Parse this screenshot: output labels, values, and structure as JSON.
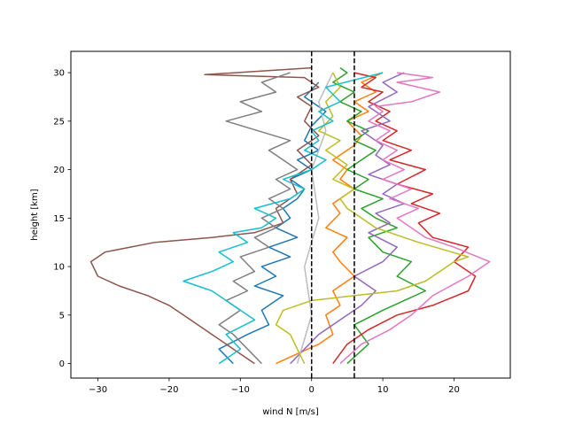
{
  "chart_data": {
    "type": "line",
    "title": "",
    "xlabel": "wind N [m/s]",
    "ylabel": "height [km]",
    "xlim": [
      -33.8,
      27.9
    ],
    "ylim": [
      -1.5,
      32.2
    ],
    "xticks": [
      -30,
      -20,
      -10,
      0,
      10,
      20
    ],
    "xtick_labels": [
      "−30",
      "−20",
      "−10",
      "0",
      "10",
      "20"
    ],
    "yticks": [
      0,
      5,
      10,
      15,
      20,
      25,
      30
    ],
    "ytick_labels": [
      "0",
      "5",
      "10",
      "15",
      "20",
      "25",
      "30"
    ],
    "grid": false,
    "legend": "none",
    "reference_lines": [
      {
        "x": 0,
        "style": "dashed",
        "color": "#000000"
      },
      {
        "x": 6,
        "style": "dashed",
        "color": "#000000"
      }
    ],
    "series": [
      {
        "color": "#1f77b4",
        "x": [
          -11,
          -13,
          -9,
          -6,
          -7,
          -4,
          -8,
          -5,
          -7,
          -3,
          -6,
          -2,
          -5,
          -3,
          -4,
          -2,
          -1,
          -3,
          0,
          -2,
          1,
          -1,
          0,
          2,
          -1,
          1
        ],
        "y": [
          0,
          1.5,
          3,
          4,
          5.5,
          7,
          8,
          9,
          10,
          11,
          12,
          13,
          14,
          15,
          16,
          17,
          18,
          19,
          20,
          21,
          22,
          23,
          24.5,
          26,
          27.5,
          29
        ]
      },
      {
        "color": "#ff7f0e",
        "x": [
          -5,
          -2,
          1,
          3,
          2,
          4,
          3,
          6,
          4,
          3,
          5,
          2,
          4,
          3,
          6,
          4,
          5,
          3,
          6,
          7,
          5,
          8,
          6,
          9,
          7,
          10
        ],
        "y": [
          0,
          1,
          2,
          3,
          5,
          6,
          7.5,
          9,
          10.5,
          11.5,
          13,
          14,
          15.5,
          16.5,
          18,
          19,
          20,
          21,
          22.5,
          23.5,
          25,
          26,
          27,
          28,
          29,
          30
        ]
      },
      {
        "color": "#2ca02c",
        "x": [
          5,
          8,
          6,
          10,
          13,
          16,
          12,
          14,
          10,
          8,
          12,
          9,
          7,
          10,
          6,
          8,
          5,
          7,
          9,
          6,
          8,
          5,
          7,
          4,
          6,
          3,
          5,
          4
        ],
        "y": [
          0,
          2,
          4,
          5.5,
          6.5,
          7.5,
          9,
          10.5,
          11.5,
          13,
          14,
          15,
          16,
          17,
          18,
          19,
          20,
          21,
          22,
          23,
          24,
          25,
          26,
          27,
          28,
          29,
          30,
          30.5
        ]
      },
      {
        "color": "#d62728",
        "x": [
          3,
          5,
          8,
          12,
          17,
          22,
          23,
          20,
          22,
          17,
          15,
          18,
          14,
          17,
          12,
          16,
          11,
          14,
          10,
          12,
          9,
          11,
          8,
          10,
          7,
          9,
          6
        ],
        "y": [
          0,
          2,
          3.5,
          5,
          6,
          7.5,
          9,
          10.5,
          12,
          13,
          14.5,
          15.5,
          16.5,
          17.5,
          18.5,
          20,
          21,
          22,
          23,
          24,
          25,
          26,
          27,
          28,
          28.5,
          29.5,
          30
        ]
      },
      {
        "color": "#9467bd",
        "x": [
          -3,
          -1,
          1,
          4,
          7,
          9,
          6,
          10,
          12,
          8,
          11,
          9,
          13,
          10,
          12,
          8,
          11,
          9,
          10,
          7,
          11,
          8,
          12,
          10,
          13
        ],
        "y": [
          0,
          1.5,
          3,
          4.5,
          6,
          7.5,
          9,
          10.5,
          12,
          13.5,
          14.5,
          15.5,
          16.5,
          17.5,
          18.5,
          19.5,
          20.5,
          21.5,
          22.5,
          24,
          25,
          26.5,
          28,
          29,
          30
        ]
      },
      {
        "color": "#8c564b",
        "x": [
          -8,
          -11,
          -14,
          -17,
          -20,
          -23,
          -27,
          -30,
          -31,
          -29,
          -22,
          -14,
          -8,
          -4,
          -5,
          -2,
          -3,
          0,
          -2,
          1,
          -1,
          0,
          -2,
          1,
          -1,
          -15,
          0
        ],
        "y": [
          0,
          1.5,
          3,
          4.5,
          6,
          7,
          8,
          9,
          10.5,
          11.5,
          12.5,
          13,
          13.5,
          14.5,
          16,
          17.5,
          19,
          20.5,
          22,
          23.5,
          25,
          26.5,
          27.5,
          28.5,
          29.5,
          29.8,
          30.5
        ]
      },
      {
        "color": "#e377c2",
        "x": [
          4,
          7,
          11,
          14,
          17,
          22,
          25,
          20,
          16,
          14,
          12,
          15,
          11,
          14,
          10,
          13,
          10,
          12,
          9,
          11,
          8,
          10,
          9,
          14,
          18,
          12,
          17,
          12
        ],
        "y": [
          0,
          2,
          3.5,
          5,
          7,
          9,
          10.5,
          12,
          13,
          14,
          15,
          16,
          17,
          18,
          19,
          20,
          21,
          22,
          23,
          24,
          25,
          26,
          26.5,
          27,
          28,
          29,
          29.5,
          30
        ]
      },
      {
        "color": "#7f7f7f",
        "x": [
          -7,
          -9,
          -11,
          -13,
          -10,
          -12,
          -9,
          -11,
          -8,
          -10,
          -6,
          -8,
          -5,
          -7,
          -4,
          -6,
          -3,
          -5,
          -2,
          -4,
          -6,
          -3,
          -12,
          -7,
          -10,
          -5,
          -7,
          -3
        ],
        "y": [
          0,
          1.5,
          3,
          4,
          5.5,
          6.5,
          7.5,
          8.5,
          9.5,
          11,
          12,
          13,
          14,
          15,
          16,
          17,
          18,
          19,
          20,
          21,
          22,
          23,
          25,
          26,
          27,
          28,
          29,
          30
        ]
      },
      {
        "color": "#bcbcbd",
        "x": [
          -2,
          0,
          -1,
          1,
          0,
          2,
          1,
          3
        ],
        "y": [
          0,
          5,
          10,
          15,
          20,
          24,
          27,
          30
        ]
      },
      {
        "color": "#bcbd22",
        "x": [
          -1,
          -2,
          -3,
          -5,
          -4,
          0,
          6,
          12,
          16,
          18,
          20,
          22,
          15,
          9,
          7,
          5,
          4,
          6,
          3,
          5,
          2,
          4,
          1,
          3,
          2,
          4,
          3
        ],
        "y": [
          0,
          1.5,
          3,
          4,
          5.5,
          6.5,
          7,
          7.5,
          8.5,
          9.5,
          10.5,
          11,
          12.5,
          14,
          15,
          16,
          17,
          18,
          19,
          20.5,
          22,
          23,
          24,
          25.5,
          27,
          28.5,
          30
        ]
      },
      {
        "color": "#17becf",
        "x": [
          -13,
          -10,
          -12,
          -8,
          -11,
          -14,
          -18,
          -14,
          -11,
          -13,
          -9,
          -11,
          -7,
          -5,
          -8,
          -3,
          -1,
          -4,
          0,
          2,
          -1,
          1,
          0,
          3,
          1,
          4,
          2,
          10
        ],
        "y": [
          0,
          1.5,
          3,
          4.5,
          6,
          7.5,
          8.5,
          9.5,
          10.5,
          11.5,
          12.5,
          13.5,
          14,
          15,
          16,
          17,
          18,
          19,
          20,
          21,
          22,
          23,
          24,
          25,
          26,
          27,
          28.5,
          30
        ]
      }
    ]
  }
}
